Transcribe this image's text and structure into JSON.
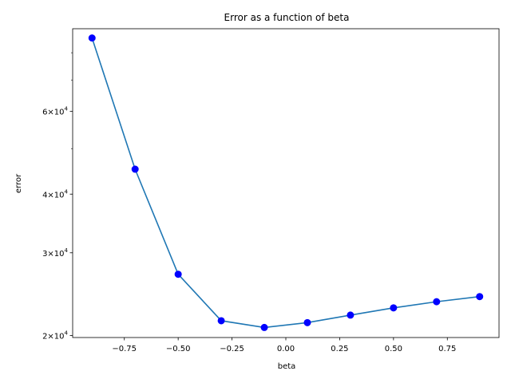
{
  "chart_data": {
    "type": "line",
    "title": "Error as a function of beta",
    "xlabel": "beta",
    "ylabel": "error",
    "xlim": [
      -0.99,
      0.99
    ],
    "ylim": [
      19800,
      90000
    ],
    "y_scale": "log",
    "grid": false,
    "x_ticks": [
      {
        "value": -0.75,
        "label": "−0.75"
      },
      {
        "value": -0.5,
        "label": "−0.50"
      },
      {
        "value": -0.25,
        "label": "−0.25"
      },
      {
        "value": 0.0,
        "label": "0.00"
      },
      {
        "value": 0.25,
        "label": "0.25"
      },
      {
        "value": 0.5,
        "label": "0.50"
      },
      {
        "value": 0.75,
        "label": "0.75"
      }
    ],
    "y_ticks_major": [
      {
        "value": 20000,
        "mant": "2",
        "exp": "4"
      },
      {
        "value": 30000,
        "mant": "3",
        "exp": "4"
      },
      {
        "value": 40000,
        "mant": "4",
        "exp": "4"
      },
      {
        "value": 60000,
        "mant": "6",
        "exp": "4"
      }
    ],
    "y_ticks_minor": [
      50000,
      70000,
      80000
    ],
    "series": [
      {
        "line_color": "#1f77b4",
        "marker_color": "#0000ff",
        "x": [
          -0.9,
          -0.7,
          -0.5,
          -0.3,
          -0.1,
          0.1,
          0.3,
          0.5,
          0.7,
          0.9
        ],
        "y": [
          86000,
          45200,
          27000,
          21500,
          20800,
          21300,
          22100,
          22900,
          23600,
          24200
        ]
      }
    ]
  }
}
